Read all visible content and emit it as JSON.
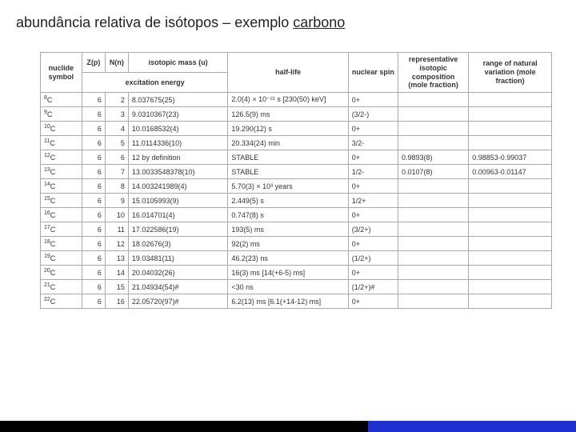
{
  "title_pre": "abundância relativa de isótopos – exemplo ",
  "title_ul": "carbono",
  "headers": {
    "nuclide": "nuclide symbol",
    "z": "Z(p)",
    "n": "N(n)",
    "mass": "isotopic mass (u)",
    "exc": "excitation energy",
    "half": "half-life",
    "spin": "nuclear spin",
    "rep": "representative isotopic composition (mole fraction)",
    "range": "range of natural variation (mole fraction)"
  },
  "rows": [
    {
      "nuc": "8C",
      "z": "6",
      "n": "2",
      "mass": "8.037675(25)",
      "half": "2.0(4) × 10⁻²¹ s [230(50) keV]",
      "spin": "0+",
      "rep": "",
      "range": ""
    },
    {
      "nuc": "9C",
      "z": "6",
      "n": "3",
      "mass": "9.0310367(23)",
      "half": "126.5(9) ms",
      "spin": "(3/2-)",
      "rep": "",
      "range": ""
    },
    {
      "nuc": "10C",
      "z": "6",
      "n": "4",
      "mass": "10.0168532(4)",
      "half": "19.290(12) s",
      "spin": "0+",
      "rep": "",
      "range": ""
    },
    {
      "nuc": "11C",
      "z": "6",
      "n": "5",
      "mass": "11.0114336(10)",
      "half": "20.334(24) min",
      "spin": "3/2-",
      "rep": "",
      "range": ""
    },
    {
      "nuc": "12C",
      "z": "6",
      "n": "6",
      "mass": "12 by definition",
      "half": "STABLE",
      "spin": "0+",
      "rep": "0.9893(8)",
      "range": "0.98853-0.99037"
    },
    {
      "nuc": "13C",
      "z": "6",
      "n": "7",
      "mass": "13.0033548378(10)",
      "half": "STABLE",
      "spin": "1/2-",
      "rep": "0.0107(8)",
      "range": "0.00963-0.01147"
    },
    {
      "nuc": "14C",
      "z": "6",
      "n": "8",
      "mass": "14.003241989(4)",
      "half": "5.70(3) × 10³ years",
      "spin": "0+",
      "rep": "",
      "range": ""
    },
    {
      "nuc": "15C",
      "z": "6",
      "n": "9",
      "mass": "15.0105993(9)",
      "half": "2.449(5) s",
      "spin": "1/2+",
      "rep": "",
      "range": ""
    },
    {
      "nuc": "16C",
      "z": "6",
      "n": "10",
      "mass": "16.014701(4)",
      "half": "0.747(8) s",
      "spin": "0+",
      "rep": "",
      "range": ""
    },
    {
      "nuc": "17C",
      "z": "6",
      "n": "11",
      "mass": "17.022586(19)",
      "half": "193(5) ms",
      "spin": "(3/2+)",
      "rep": "",
      "range": ""
    },
    {
      "nuc": "18C",
      "z": "6",
      "n": "12",
      "mass": "18.02676(3)",
      "half": "92(2) ms",
      "spin": "0+",
      "rep": "",
      "range": ""
    },
    {
      "nuc": "19C",
      "z": "6",
      "n": "13",
      "mass": "19.03481(11)",
      "half": "46.2(23) ns",
      "spin": "(1/2+)",
      "rep": "",
      "range": ""
    },
    {
      "nuc": "20C",
      "z": "6",
      "n": "14",
      "mass": "20.04032(26)",
      "half": "16(3) ms [14(+6-5) ms]",
      "spin": "0+",
      "rep": "",
      "range": ""
    },
    {
      "nuc": "21C",
      "z": "6",
      "n": "15",
      "mass": "21.04934(54)#",
      "half": "<30 ns",
      "spin": "(1/2+)#",
      "rep": "",
      "range": ""
    },
    {
      "nuc": "22C",
      "z": "6",
      "n": "16",
      "mass": "22.05720(97)#",
      "half": "6.2(13) ms [6.1(+14-12) ms]",
      "spin": "0+",
      "rep": "",
      "range": ""
    }
  ],
  "colors": {
    "border": "#aaaaaa",
    "text": "#333333",
    "title": "#222222",
    "footer_black": "#000000",
    "footer_blue": "#2030d0",
    "bg": "#ffffff"
  }
}
